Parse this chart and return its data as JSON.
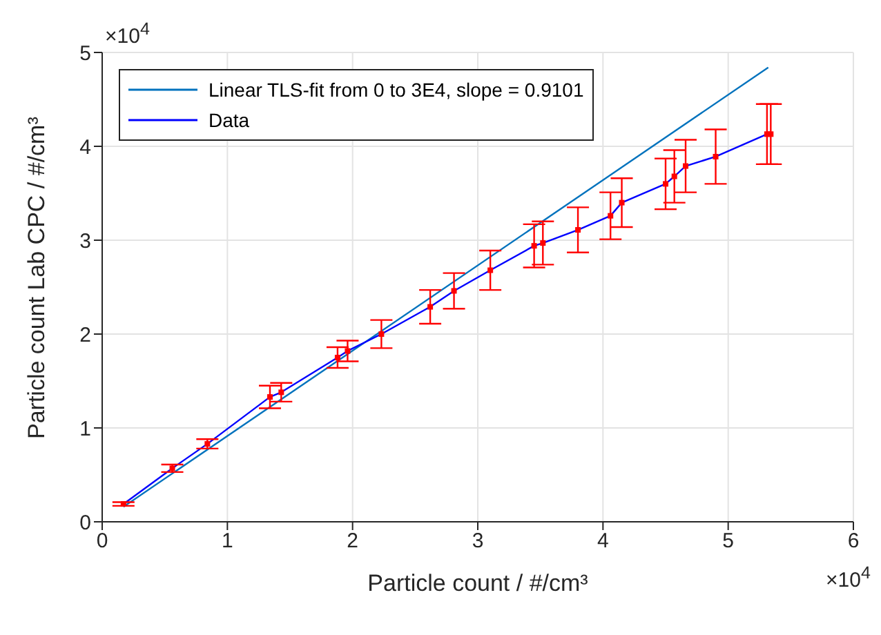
{
  "chart_data": {
    "type": "line",
    "xlabel": "Particle count / #/cm³",
    "ylabel": "Particle count Lab CPC / #/cm³",
    "annotations": [
      "×10$^{4}$",
      "×10$^{4}$"
    ],
    "xlim": [
      0,
      6
    ],
    "xticks": [
      0,
      1,
      2,
      3,
      4,
      5,
      6
    ],
    "ylim": [
      0,
      5
    ],
    "yticks": [
      0,
      1,
      2,
      3,
      4,
      5
    ],
    "grid": true,
    "legend": "top left",
    "series": [
      {
        "name": "Linear TLS-fit from 0 to 3E4, slope = 0.9101",
        "color": "#0072bd",
        "marker": "none",
        "x": [
          0.17,
          5.32
        ],
        "values": [
          0.16,
          4.84
        ]
      },
      {
        "name": "Data",
        "color": "#0000ff",
        "marker": "none",
        "x": [
          0.17,
          0.56,
          0.84,
          1.34,
          1.43,
          1.88,
          1.96,
          2.23,
          2.62,
          2.81,
          3.1,
          3.45,
          3.52,
          3.8,
          4.06,
          4.15,
          4.5,
          4.57,
          4.66,
          4.9,
          5.31,
          5.34
        ],
        "values": [
          0.19,
          0.57,
          0.83,
          1.33,
          1.38,
          1.75,
          1.82,
          2.0,
          2.29,
          2.46,
          2.68,
          2.94,
          2.97,
          3.11,
          3.26,
          3.4,
          3.6,
          3.68,
          3.79,
          3.89,
          4.13,
          4.13
        ]
      },
      {
        "type": "scatter",
        "color": "#ff0000",
        "marker": "square",
        "x": [
          0.17,
          0.56,
          0.84,
          1.34,
          1.43,
          1.88,
          1.96,
          2.23,
          2.62,
          2.81,
          3.1,
          3.45,
          3.52,
          3.8,
          4.06,
          4.15,
          4.5,
          4.57,
          4.66,
          4.9,
          5.31,
          5.34
        ],
        "values": [
          0.19,
          0.57,
          0.83,
          1.33,
          1.38,
          1.75,
          1.82,
          2.0,
          2.29,
          2.46,
          2.68,
          2.94,
          2.97,
          3.11,
          3.26,
          3.4,
          3.6,
          3.68,
          3.79,
          3.89,
          4.13,
          4.13
        ],
        "errors": [
          0.02,
          0.04,
          0.05,
          0.12,
          0.1,
          0.11,
          0.11,
          0.15,
          0.18,
          0.19,
          0.21,
          0.23,
          0.23,
          0.24,
          0.25,
          0.26,
          0.27,
          0.28,
          0.28,
          0.29,
          0.32,
          0.32
        ]
      }
    ]
  }
}
